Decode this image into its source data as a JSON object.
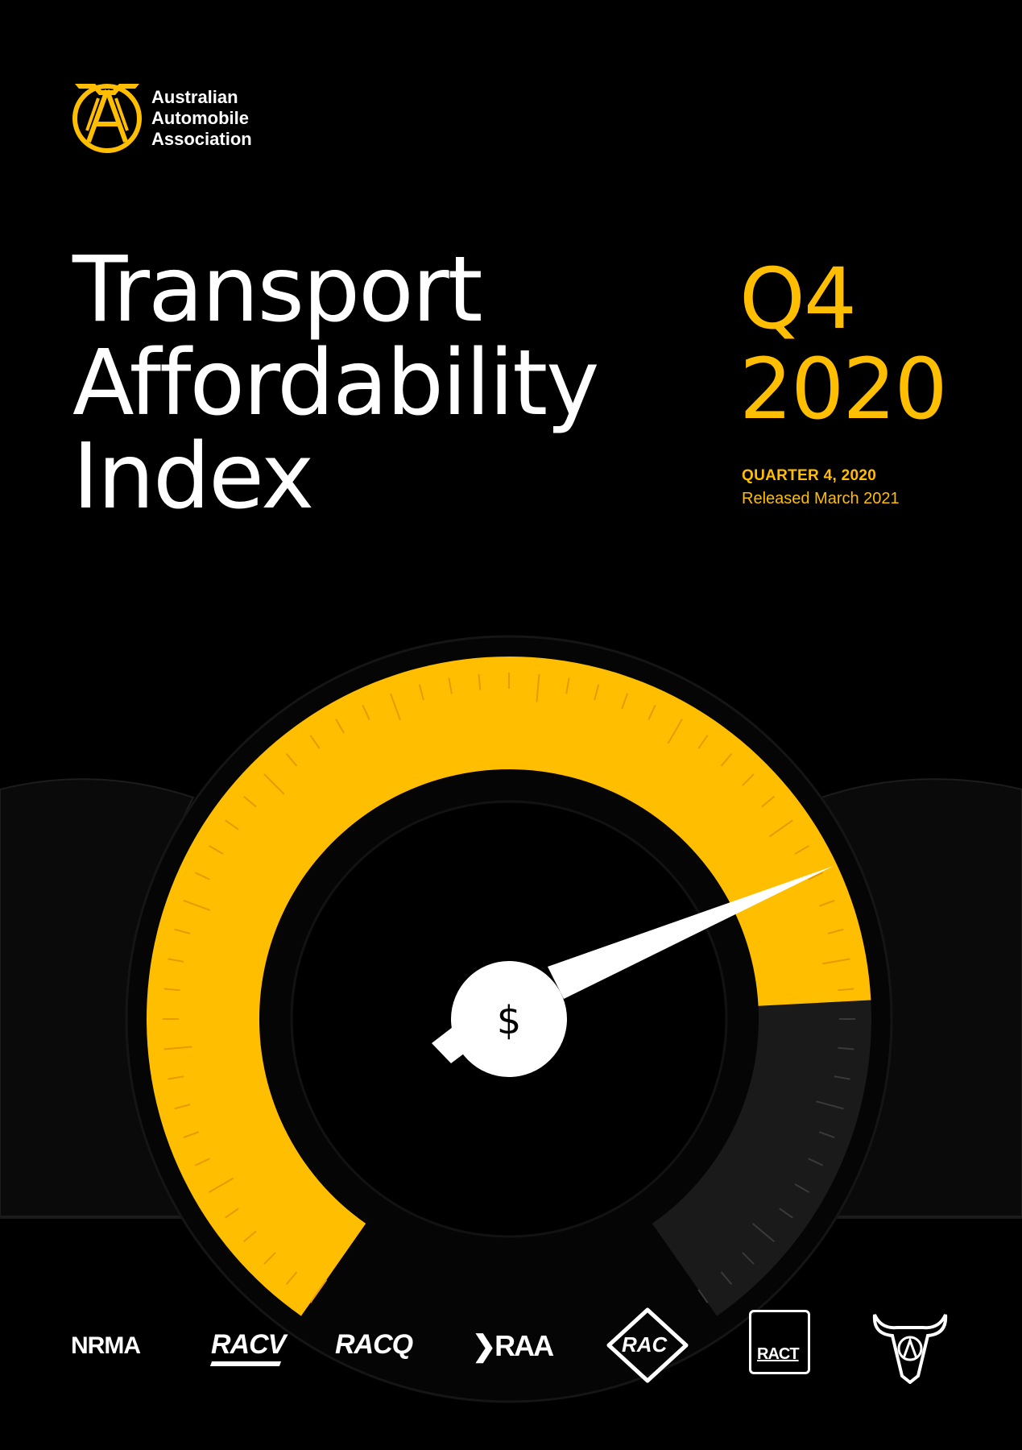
{
  "brand": {
    "name_lines": [
      "Australian",
      "Automobile",
      "Association"
    ],
    "logo_letters": "AAA",
    "accent": "#ffbe00"
  },
  "title_lines": [
    "Transport",
    "Affordability",
    "Index"
  ],
  "period": {
    "line1": "Q4",
    "line2": "2020",
    "quarter": "QUARTER 4, 2020",
    "released": "Released March 2021"
  },
  "gauge": {
    "center_symbol": "$",
    "fill_color": "#ffbe00",
    "needle_color": "#ffffff",
    "level_percent": 80
  },
  "partners": [
    "NRMA",
    "RACV",
    "RACQ",
    "RAA",
    "RAC",
    "RACT",
    "AANT"
  ]
}
